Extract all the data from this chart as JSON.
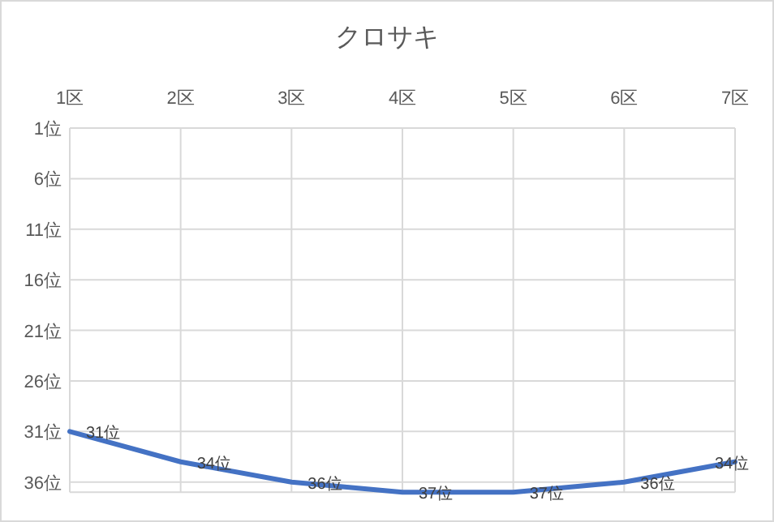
{
  "chart_data": {
    "type": "line",
    "title": "クロサキ",
    "categories": [
      "1区",
      "2区",
      "3区",
      "4区",
      "5区",
      "6区",
      "7区"
    ],
    "series": [
      {
        "color": "#4472c4",
        "values": [
          31,
          34,
          36,
          37,
          37,
          36,
          34
        ],
        "value_labels": [
          "31位",
          "34位",
          "36位",
          "37位",
          "37位",
          "36位",
          "34位"
        ]
      }
    ],
    "ylim": [
      37,
      1
    ],
    "yticks": [
      {
        "value": 1,
        "label": "1位"
      },
      {
        "value": 6,
        "label": "6位"
      },
      {
        "value": 11,
        "label": "11位"
      },
      {
        "value": 16,
        "label": "16位"
      },
      {
        "value": 21,
        "label": "21位"
      },
      {
        "value": 26,
        "label": "26位"
      },
      {
        "value": 31,
        "label": "31位"
      },
      {
        "value": 36,
        "label": "36位"
      }
    ],
    "grid": true,
    "marker": "none",
    "line_style": "solid"
  }
}
